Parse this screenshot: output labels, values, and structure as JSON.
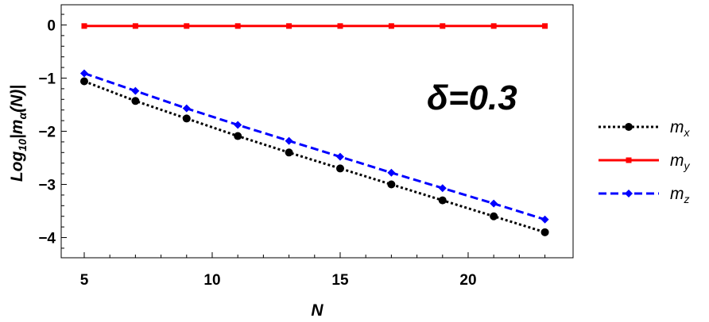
{
  "chart_data": {
    "type": "line",
    "xlabel": "N",
    "ylabel": "Log",
    "ylabel_sub": "10",
    "ylabel_rest": "|m",
    "ylabel_alpha": "α",
    "ylabel_tail": "(N)|",
    "annotation": "δ=0.3",
    "xlim": [
      4.1,
      24.1
    ],
    "ylim": [
      -4.38,
      0.38
    ],
    "xticks": [
      5,
      10,
      15,
      20
    ],
    "yticks": [
      0,
      -1,
      -2,
      -3,
      -4
    ],
    "ytick_labels": [
      "0",
      "−1",
      "−2",
      "−3",
      "−4"
    ],
    "x": [
      5,
      7,
      9,
      11,
      13,
      15,
      17,
      19,
      21,
      23
    ],
    "series": [
      {
        "name": "m",
        "sub": "x",
        "color": "#000000",
        "dash": "dotted",
        "marker": "circle",
        "values": [
          -1.06,
          -1.43,
          -1.76,
          -2.09,
          -2.4,
          -2.7,
          -3.0,
          -3.3,
          -3.6,
          -3.9
        ]
      },
      {
        "name": "m",
        "sub": "y",
        "color": "#ff0000",
        "dash": "solid",
        "marker": "square",
        "values": [
          -0.02,
          -0.02,
          -0.02,
          -0.02,
          -0.02,
          -0.02,
          -0.02,
          -0.02,
          -0.02,
          -0.02
        ]
      },
      {
        "name": "m",
        "sub": "z",
        "color": "#0000ff",
        "dash": "dashed",
        "marker": "diamond",
        "values": [
          -0.91,
          -1.24,
          -1.57,
          -1.88,
          -2.18,
          -2.48,
          -2.78,
          -3.07,
          -3.36,
          -3.66
        ]
      }
    ],
    "grid": false,
    "legend_position": "right"
  }
}
